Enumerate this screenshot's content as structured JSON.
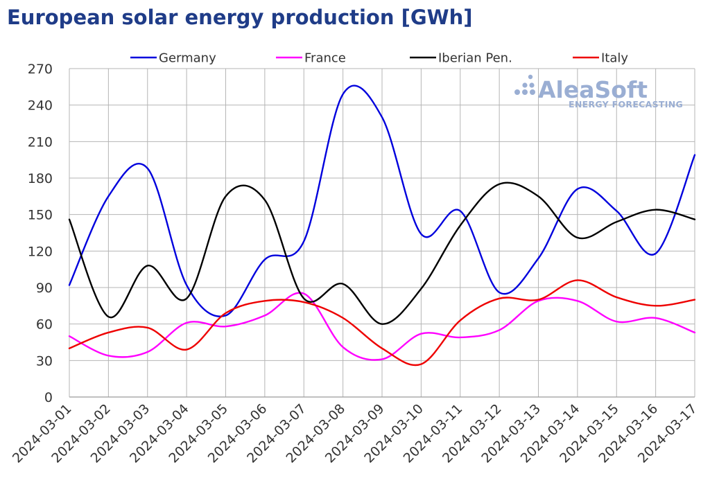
{
  "chart_data": {
    "type": "line",
    "title": "European solar energy production [GWh]",
    "xlabel": "",
    "ylabel": "",
    "ylim": [
      0,
      270
    ],
    "yticks": [
      0,
      30,
      60,
      90,
      120,
      150,
      180,
      210,
      240,
      270
    ],
    "grid": true,
    "legend_position": "top",
    "categories": [
      "2024-03-01",
      "2024-03-02",
      "2024-03-03",
      "2024-03-04",
      "2024-03-05",
      "2024-03-06",
      "2024-03-07",
      "2024-03-08",
      "2024-03-09",
      "2024-03-10",
      "2024-03-11",
      "2024-03-12",
      "2024-03-13",
      "2024-03-14",
      "2024-03-15",
      "2024-03-16",
      "2024-03-17"
    ],
    "series": [
      {
        "name": "Germany",
        "color": "#0000dd",
        "values": [
          92,
          165,
          188,
          92,
          67,
          113,
          128,
          249,
          230,
          134,
          153,
          86,
          114,
          171,
          153,
          118,
          199
        ]
      },
      {
        "name": "France",
        "color": "#ff00ff",
        "values": [
          50,
          34,
          37,
          61,
          58,
          67,
          85,
          41,
          31,
          52,
          49,
          55,
          79,
          79,
          62,
          65,
          53
        ]
      },
      {
        "name": "Iberian Pen.",
        "color": "#000000",
        "values": [
          146,
          66,
          108,
          81,
          165,
          162,
          81,
          93,
          60,
          89,
          141,
          175,
          165,
          131,
          144,
          154,
          146
        ]
      },
      {
        "name": "Italy",
        "color": "#ee0000",
        "values": [
          40,
          53,
          57,
          39,
          69,
          79,
          78,
          65,
          40,
          27,
          63,
          81,
          80,
          96,
          82,
          75,
          80
        ]
      }
    ]
  },
  "watermark": {
    "brand": "AleaSoft",
    "tagline": "ENERGY FORECASTING"
  }
}
